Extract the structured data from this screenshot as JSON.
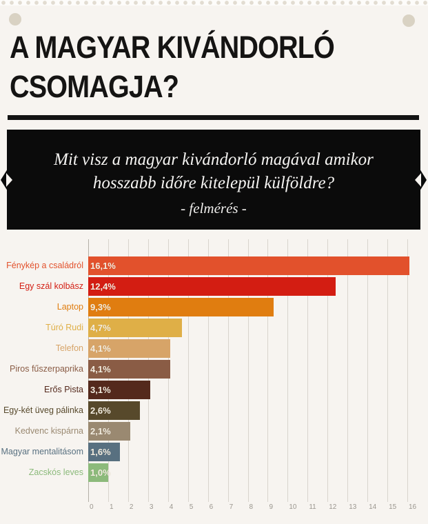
{
  "header": {
    "title_line1": "A MAGYAR KIVÁNDORLÓ",
    "title_line2": "CSOMAGJA?"
  },
  "banner": {
    "question_line1": "Mit visz a magyar kivándorló magával amikor",
    "question_line2": "hosszabb időre kitelepül külföldre?",
    "subtitle": "- felmérés -"
  },
  "colors": {
    "page_bg": "#F7F4F0",
    "banner_bg": "#0B0B0B",
    "banner_text": "#F5F4F2",
    "title_text": "#151413",
    "gridline": "#D8D4CD",
    "tick_text": "#9A968E",
    "bar_value_text": "#F3EDE0",
    "pin_dot": "#D9D2C3"
  },
  "chart_data": {
    "type": "bar",
    "orientation": "horizontal",
    "title": "",
    "xlabel": "",
    "ylabel": "",
    "xlim": [
      0,
      16
    ],
    "x_ticks": [
      0,
      1,
      2,
      3,
      4,
      5,
      6,
      7,
      8,
      9,
      10,
      11,
      12,
      13,
      14,
      15,
      16
    ],
    "grid": true,
    "legend": false,
    "categories": [
      "Fénykép a családról",
      "Egy szál kolbász",
      "Laptop",
      "Túró Rudi",
      "Telefon",
      "Piros fűszerpaprika",
      "Erős Pista",
      "Egy-két üveg pálinka",
      "Kedvenc kispárna",
      "Magyar mentalitásom",
      "Zacskós leves"
    ],
    "values": [
      16.1,
      12.4,
      9.3,
      4.7,
      4.1,
      4.1,
      3.1,
      2.6,
      2.1,
      1.6,
      1.0
    ],
    "value_labels": [
      "16,1%",
      "12,4%",
      "9,3%",
      "4,7%",
      "4,1%",
      "4,1%",
      "3,1%",
      "2,6%",
      "2,1%",
      "1,6%",
      "1,0%"
    ],
    "bar_colors": [
      "#E2512C",
      "#D31D12",
      "#E07D10",
      "#DFAF47",
      "#D7A468",
      "#8A5C45",
      "#54291C",
      "#57492B",
      "#9A8971",
      "#587080",
      "#8CBA7B"
    ]
  }
}
